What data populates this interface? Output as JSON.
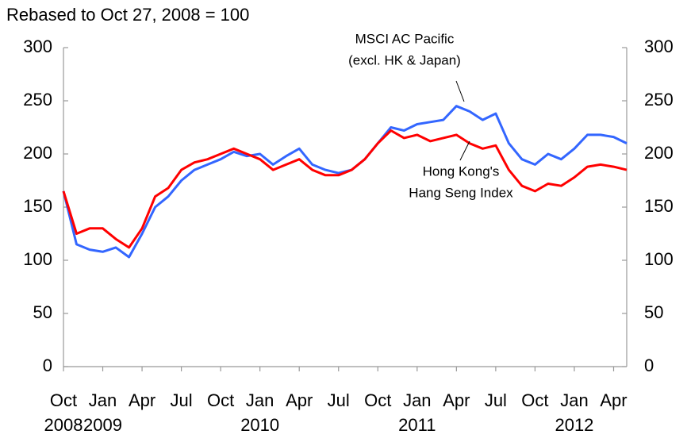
{
  "chart_data": {
    "type": "line",
    "title": "Rebased to Oct 27, 2008 = 100",
    "x": [
      "2008-10",
      "2008-11",
      "2008-12",
      "2009-01",
      "2009-02",
      "2009-03",
      "2009-04",
      "2009-05",
      "2009-06",
      "2009-07",
      "2009-08",
      "2009-09",
      "2009-10",
      "2009-11",
      "2009-12",
      "2010-01",
      "2010-02",
      "2010-03",
      "2010-04",
      "2010-05",
      "2010-06",
      "2010-07",
      "2010-08",
      "2010-09",
      "2010-10",
      "2010-11",
      "2010-12",
      "2011-01",
      "2011-02",
      "2011-03",
      "2011-04",
      "2011-05",
      "2011-06",
      "2011-07",
      "2011-08",
      "2011-09",
      "2011-10",
      "2011-11",
      "2011-12",
      "2012-01",
      "2012-02",
      "2012-03",
      "2012-04",
      "2012-05"
    ],
    "series": [
      {
        "name": [
          "MSCI AC Pacific",
          "(excl. HK & Japan)"
        ],
        "color": "#3366ff",
        "values": [
          165,
          115,
          110,
          108,
          112,
          103,
          125,
          150,
          160,
          175,
          185,
          190,
          195,
          202,
          198,
          200,
          190,
          198,
          205,
          190,
          185,
          182,
          185,
          195,
          210,
          225,
          222,
          228,
          230,
          232,
          245,
          240,
          232,
          238,
          210,
          195,
          190,
          200,
          195,
          205,
          218,
          218,
          216,
          210
        ]
      },
      {
        "name": [
          "Hong Kong's",
          "Hang Seng Index"
        ],
        "color": "#ff0000",
        "values": [
          165,
          125,
          130,
          130,
          120,
          112,
          130,
          160,
          168,
          185,
          192,
          195,
          200,
          205,
          200,
          195,
          185,
          190,
          195,
          185,
          180,
          180,
          185,
          195,
          210,
          222,
          215,
          218,
          212,
          215,
          218,
          210,
          205,
          208,
          185,
          170,
          165,
          172,
          170,
          178,
          188,
          190,
          188,
          185
        ]
      }
    ],
    "xlim": [
      "2008-10",
      "2012-05"
    ],
    "xticks": [
      {
        "value": "2008-10",
        "label": "Oct"
      },
      {
        "value": "2009-01",
        "label": "Jan"
      },
      {
        "value": "2009-04",
        "label": "Apr"
      },
      {
        "value": "2009-07",
        "label": "Jul"
      },
      {
        "value": "2009-10",
        "label": "Oct"
      },
      {
        "value": "2010-01",
        "label": "Jan"
      },
      {
        "value": "2010-04",
        "label": "Apr"
      },
      {
        "value": "2010-07",
        "label": "Jul"
      },
      {
        "value": "2010-10",
        "label": "Oct"
      },
      {
        "value": "2011-01",
        "label": "Jan"
      },
      {
        "value": "2011-04",
        "label": "Apr"
      },
      {
        "value": "2011-07",
        "label": "Jul"
      },
      {
        "value": "2011-10",
        "label": "Oct"
      },
      {
        "value": "2012-01",
        "label": "Jan"
      },
      {
        "value": "2012-04",
        "label": "Apr"
      }
    ],
    "xtick_years": [
      {
        "value": "2008-10",
        "label": "2008"
      },
      {
        "value": "2009-01",
        "label": "2009"
      },
      {
        "value": "2010-01",
        "label": "2010"
      },
      {
        "value": "2011-01",
        "label": "2011"
      },
      {
        "value": "2012-01",
        "label": "2012"
      }
    ],
    "ylim": [
      0,
      300
    ],
    "yticks": [
      0,
      50,
      100,
      150,
      200,
      250,
      300
    ],
    "y2lim": [
      0,
      300
    ],
    "y2ticks": [
      0,
      50,
      100,
      150,
      200,
      250,
      300
    ],
    "grid": false
  }
}
